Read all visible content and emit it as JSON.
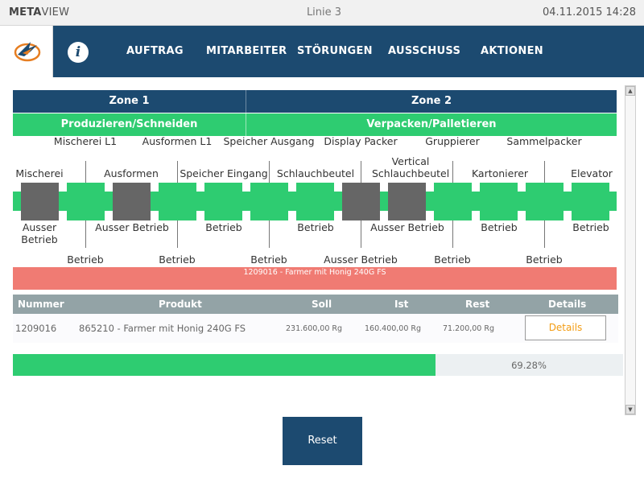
{
  "titlebar": {
    "brand_bold": "META",
    "brand_rest": "VIEW",
    "line": "Linie 3",
    "datetime": "04.11.2015 14:28"
  },
  "nav": {
    "logo_icon": "bird-logo-icon",
    "info_label": "i",
    "items": [
      "AUFTRAG",
      "MITARBEITER",
      "STÖRUNGEN",
      "AUSSCHUSS",
      "AKTIONEN"
    ]
  },
  "zones": [
    {
      "name": "Zone 1",
      "phase": "Produzieren/Schneiden"
    },
    {
      "name": "Zone 2",
      "phase": "Verpacken/Palletieren"
    }
  ],
  "machines": [
    {
      "label": "Mischerei",
      "status": "Ausser Betrieb",
      "color": "#666666"
    },
    {
      "label": "Mischerei L1",
      "status": "Betrieb",
      "color": "#2ecc71"
    },
    {
      "label": "Ausformen",
      "status": "Ausser Betrieb",
      "color": "#666666"
    },
    {
      "label": "Ausformen L1",
      "status": "Betrieb",
      "color": "#2ecc71"
    },
    {
      "label": "Speicher Eingang",
      "status": "Betrieb",
      "color": "#2ecc71"
    },
    {
      "label": "Speicher Ausgang",
      "status": "Betrieb",
      "color": "#2ecc71"
    },
    {
      "label": "Schlauchbeutel",
      "status": "Betrieb",
      "color": "#2ecc71"
    },
    {
      "label": "Display Packer",
      "status": "Ausser Betrieb",
      "color": "#666666"
    },
    {
      "label": "Vertical Schlauchbeutel",
      "status": "Ausser Betrieb",
      "color": "#666666"
    },
    {
      "label": "Gruppierer",
      "status": "Betrieb",
      "color": "#2ecc71"
    },
    {
      "label": "Kartonierer",
      "status": "Betrieb",
      "color": "#2ecc71"
    },
    {
      "label": "Sammelpacker",
      "status": "Betrieb",
      "color": "#2ecc71"
    },
    {
      "label": "Elevator",
      "status": "Betrieb",
      "color": "#2ecc71"
    }
  ],
  "order_banner": "1209016 - Farmer mit Honig 240G FS",
  "table": {
    "headers": [
      "Nummer",
      "Produkt",
      "Soll",
      "Ist",
      "Rest",
      "Details"
    ],
    "row": {
      "nummer": "1209016",
      "produkt": "865210 - Farmer mit Honig 240G FS",
      "soll": "231.600,00 Rg",
      "ist": "160.400,00 Rg",
      "rest": "71.200,00 Rg",
      "details_label": "Details"
    }
  },
  "progress": {
    "value": 0.6928,
    "label": "69.28%"
  },
  "reset_label": "Reset",
  "colors": {
    "navy": "#1c4a70",
    "green": "#2ecc71",
    "gray_machine": "#666666",
    "banner_red": "#f07b73",
    "details_orange": "#f39c12"
  }
}
